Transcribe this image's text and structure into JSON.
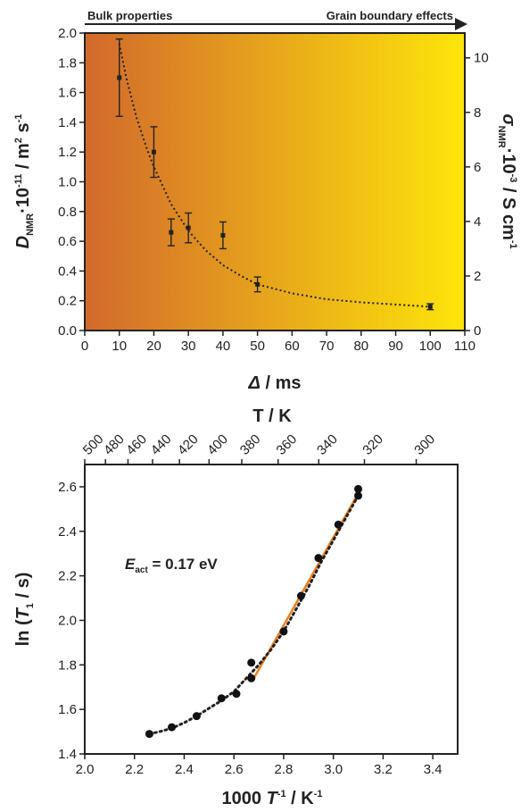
{
  "chart_data": [
    {
      "type": "scatter",
      "title": "",
      "banner": {
        "left": "Bulk properties",
        "right": "Grain boundary effects"
      },
      "colors": {
        "gradient_start": "#d2692c",
        "gradient_end": "#fde50a",
        "banner_left": "#c8703a",
        "banner_right": "#c9a82a",
        "arrow": "#222222"
      },
      "xlabel": {
        "symbol": "Δ",
        "rest": " / ms"
      },
      "ylabel": {
        "D": "D",
        "sub": "NMR",
        "mid": "·10",
        "sup1": "-11",
        "tail": " / m",
        "sup2": "2",
        "s": " s",
        "sup3": "-1"
      },
      "y2label": {
        "sigma": "σ",
        "sub": "NMR",
        "mid": "·10",
        "sup1": "-3",
        "tail": " / S cm",
        "sup2": "-1"
      },
      "xlim": [
        0,
        110
      ],
      "ylim": [
        0.0,
        2.0
      ],
      "y2lim": [
        0,
        10.909
      ],
      "x_ticks": [
        0,
        10,
        20,
        30,
        40,
        50,
        60,
        70,
        80,
        90,
        100,
        110
      ],
      "y_ticks": [
        0.0,
        0.2,
        0.4,
        0.6,
        0.8,
        1.0,
        1.2,
        1.4,
        1.6,
        1.8,
        2.0
      ],
      "y2_ticks": [
        0,
        2,
        4,
        6,
        8,
        10
      ],
      "x_tick_labels": [
        "0",
        "10",
        "20",
        "30",
        "40",
        "50",
        "60",
        "70",
        "80",
        "90",
        "100",
        "110"
      ],
      "y_tick_labels": [
        "0.0",
        "0.2",
        "0.4",
        "0.6",
        "0.8",
        "1.0",
        "1.2",
        "1.4",
        "1.6",
        "1.8",
        "2.0"
      ],
      "y2_tick_labels": [
        "0",
        "2",
        "4",
        "6",
        "8",
        "10"
      ],
      "series": [
        {
          "x": [
            10,
            20,
            25,
            30,
            40,
            50,
            100
          ],
          "y": [
            1.7,
            1.2,
            0.66,
            0.69,
            0.64,
            0.31,
            0.16
          ],
          "yerr": [
            0.26,
            0.17,
            0.09,
            0.1,
            0.09,
            0.05,
            0.02
          ]
        }
      ],
      "fit_curve": {
        "x": [
          10,
          12,
          15,
          18,
          20,
          25,
          30,
          35,
          40,
          45,
          50,
          60,
          70,
          80,
          90,
          100
        ],
        "y": [
          1.93,
          1.7,
          1.43,
          1.22,
          1.1,
          0.85,
          0.67,
          0.54,
          0.44,
          0.37,
          0.31,
          0.25,
          0.21,
          0.19,
          0.175,
          0.16
        ]
      },
      "grid": false
    },
    {
      "type": "scatter",
      "title": "",
      "top_axis_title": "T / K",
      "xlabel": {
        "pre": "1000 ",
        "T": "T",
        "sup1": "-1",
        "tail": " / K",
        "sup2": "-1"
      },
      "ylabel": {
        "pre": "ln (",
        "T": "T",
        "sub": "1",
        "tail": " / s)"
      },
      "annotation": {
        "E": "E",
        "sub": "act",
        "text": " = 0.17 eV",
        "color": "#f07f1e"
      },
      "xlim": [
        2.0,
        3.5
      ],
      "ylim": [
        1.4,
        2.7
      ],
      "x_ticks": [
        2.0,
        2.2,
        2.4,
        2.6,
        2.8,
        3.0,
        3.2,
        3.4
      ],
      "x_tick_labels": [
        "2.0",
        "2.2",
        "2.4",
        "2.6",
        "2.8",
        "3.0",
        "3.2",
        "3.4"
      ],
      "y_ticks": [
        1.4,
        1.6,
        1.8,
        2.0,
        2.2,
        2.4,
        2.6
      ],
      "y_tick_labels": [
        "1.4",
        "1.6",
        "1.8",
        "2.0",
        "2.2",
        "2.4",
        "2.6"
      ],
      "top_ticks_K": [
        500,
        480,
        460,
        440,
        420,
        400,
        380,
        360,
        340,
        320,
        300
      ],
      "top_tick_labels": [
        "500",
        "480",
        "460",
        "440",
        "420",
        "400",
        "380",
        "360",
        "340",
        "320",
        "300"
      ],
      "series": [
        {
          "x": [
            2.26,
            2.35,
            2.45,
            2.55,
            2.61,
            2.67,
            2.67,
            2.8,
            2.87,
            2.94,
            3.02,
            3.1,
            3.1
          ],
          "y": [
            1.49,
            1.52,
            1.57,
            1.65,
            1.67,
            1.81,
            1.74,
            1.95,
            2.11,
            2.28,
            2.43,
            2.56,
            2.59
          ]
        }
      ],
      "fit_curve": {
        "x": [
          2.26,
          2.3,
          2.35,
          2.4,
          2.45,
          2.5,
          2.55,
          2.6,
          2.65,
          2.7,
          2.75,
          2.8,
          2.85,
          2.9,
          2.95,
          3.0,
          3.05,
          3.1
        ],
        "y": [
          1.49,
          1.5,
          1.515,
          1.54,
          1.57,
          1.605,
          1.64,
          1.68,
          1.74,
          1.8,
          1.87,
          1.95,
          2.05,
          2.15,
          2.26,
          2.36,
          2.46,
          2.56
        ]
      },
      "linear_fit": {
        "x": [
          2.68,
          3.1
        ],
        "y": [
          1.74,
          2.57
        ],
        "color": "#f07f1e"
      },
      "grid": false
    }
  ]
}
